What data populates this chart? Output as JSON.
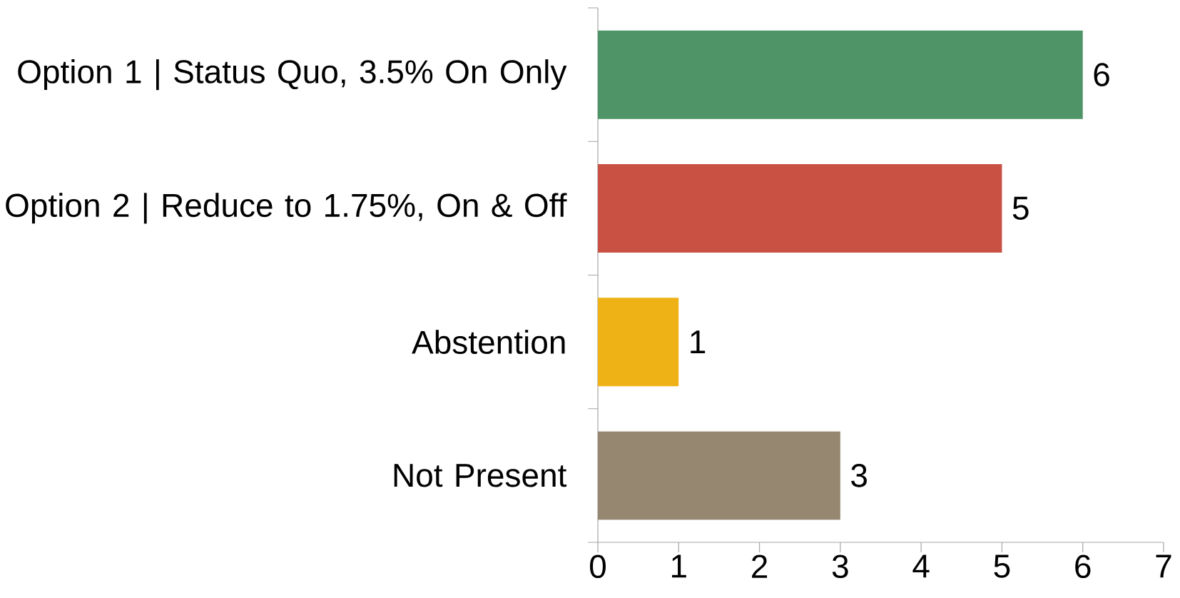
{
  "chart_data": {
    "type": "bar",
    "orientation": "horizontal",
    "categories": [
      "Option 1 | Status Quo, 3.5% On Only",
      "Option 2 | Reduce to 1.75%, On & Off",
      "Abstention",
      "Not Present"
    ],
    "values": [
      6,
      5,
      1,
      3
    ],
    "colors": [
      "#4e9467",
      "#c85144",
      "#eeb216",
      "#968870"
    ],
    "xlim": [
      0,
      7
    ],
    "xticks": [
      0,
      1,
      2,
      3,
      4,
      5,
      6,
      7
    ],
    "data_labels": true
  }
}
